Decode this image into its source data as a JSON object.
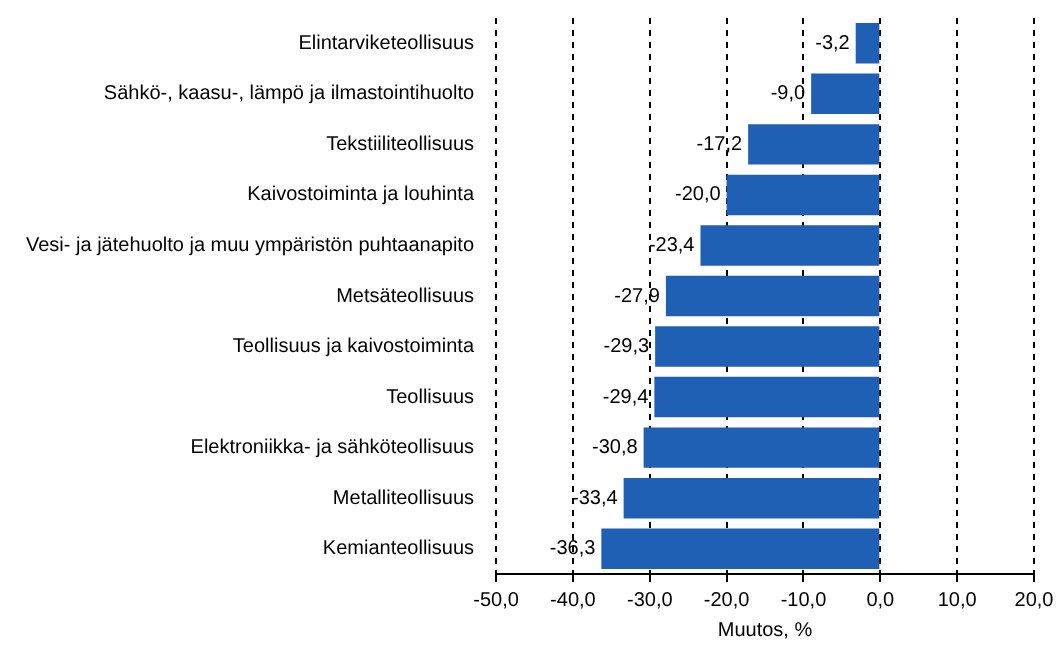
{
  "chart_data": {
    "type": "bar",
    "orientation": "horizontal",
    "xlabel": "Muutos, %",
    "categories": [
      "Elintarviketeollisuus",
      "Sähkö-, kaasu-, lämpö ja ilmastointihuolto",
      "Tekstiiliteollisuus",
      "Kaivostoiminta ja louhinta",
      "Vesi- ja jätehuolto ja muu ympäristön puhtaanapito",
      "Metsäteollisuus",
      "Teollisuus ja kaivostoiminta",
      "Teollisuus",
      "Elektroniikka- ja sähköteollisuus",
      "Metalliteollisuus",
      "Kemianteollisuus"
    ],
    "values": [
      -3.2,
      -9.0,
      -17.2,
      -20.0,
      -23.4,
      -27.9,
      -29.3,
      -29.4,
      -30.8,
      -33.4,
      -36.3
    ],
    "value_labels": [
      "-3,2",
      "-9,0",
      "-17,2",
      "-20,0",
      "-23,4",
      "-27,9",
      "-29,3",
      "-29,4",
      "-30,8",
      "-33,4",
      "-36,3"
    ],
    "color": "#1f5fb4",
    "xlim": [
      -50,
      20
    ],
    "xticks": [
      {
        "value": -50,
        "label": "-50,0"
      },
      {
        "value": -40,
        "label": "-40,0"
      },
      {
        "value": -30,
        "label": "-30,0"
      },
      {
        "value": -20,
        "label": "-20,0"
      },
      {
        "value": -10,
        "label": "-10,0"
      },
      {
        "value": 0,
        "label": "0,0"
      },
      {
        "value": 10,
        "label": "10,0"
      },
      {
        "value": 20,
        "label": "20,0"
      }
    ],
    "grid": "x",
    "legend": false
  }
}
